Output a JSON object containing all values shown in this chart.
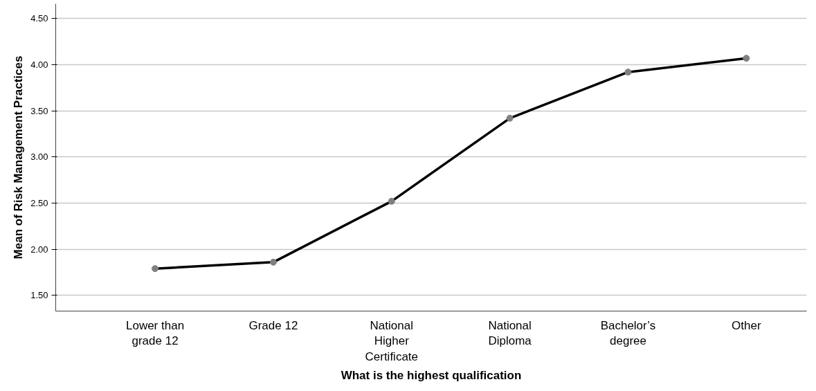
{
  "chart_data": {
    "type": "line",
    "xlabel": "What is the highest qualification",
    "ylabel": "Mean of Risk Management Practices",
    "categories": [
      "Lower than grade 12",
      "Grade 12",
      "National Higher Certificate",
      "National Diploma",
      "Bachelor’s degree",
      "Other"
    ],
    "series": [
      {
        "color": "#000000",
        "values": [
          1.79,
          1.86,
          2.52,
          3.42,
          3.92,
          4.07
        ]
      }
    ],
    "ylim": [
      1.33,
      4.66
    ],
    "yticks": [
      {
        "value": 1.5,
        "label": "1.50"
      },
      {
        "value": 2.0,
        "label": "2.00"
      },
      {
        "value": 2.5,
        "label": "2.50"
      },
      {
        "value": 3.0,
        "label": "3.00"
      },
      {
        "value": 3.5,
        "label": "3.50"
      },
      {
        "value": 4.0,
        "label": "4.00"
      },
      {
        "value": 4.5,
        "label": "4.50"
      }
    ],
    "grid": "y",
    "marker": "circle",
    "line_style": "solid"
  }
}
